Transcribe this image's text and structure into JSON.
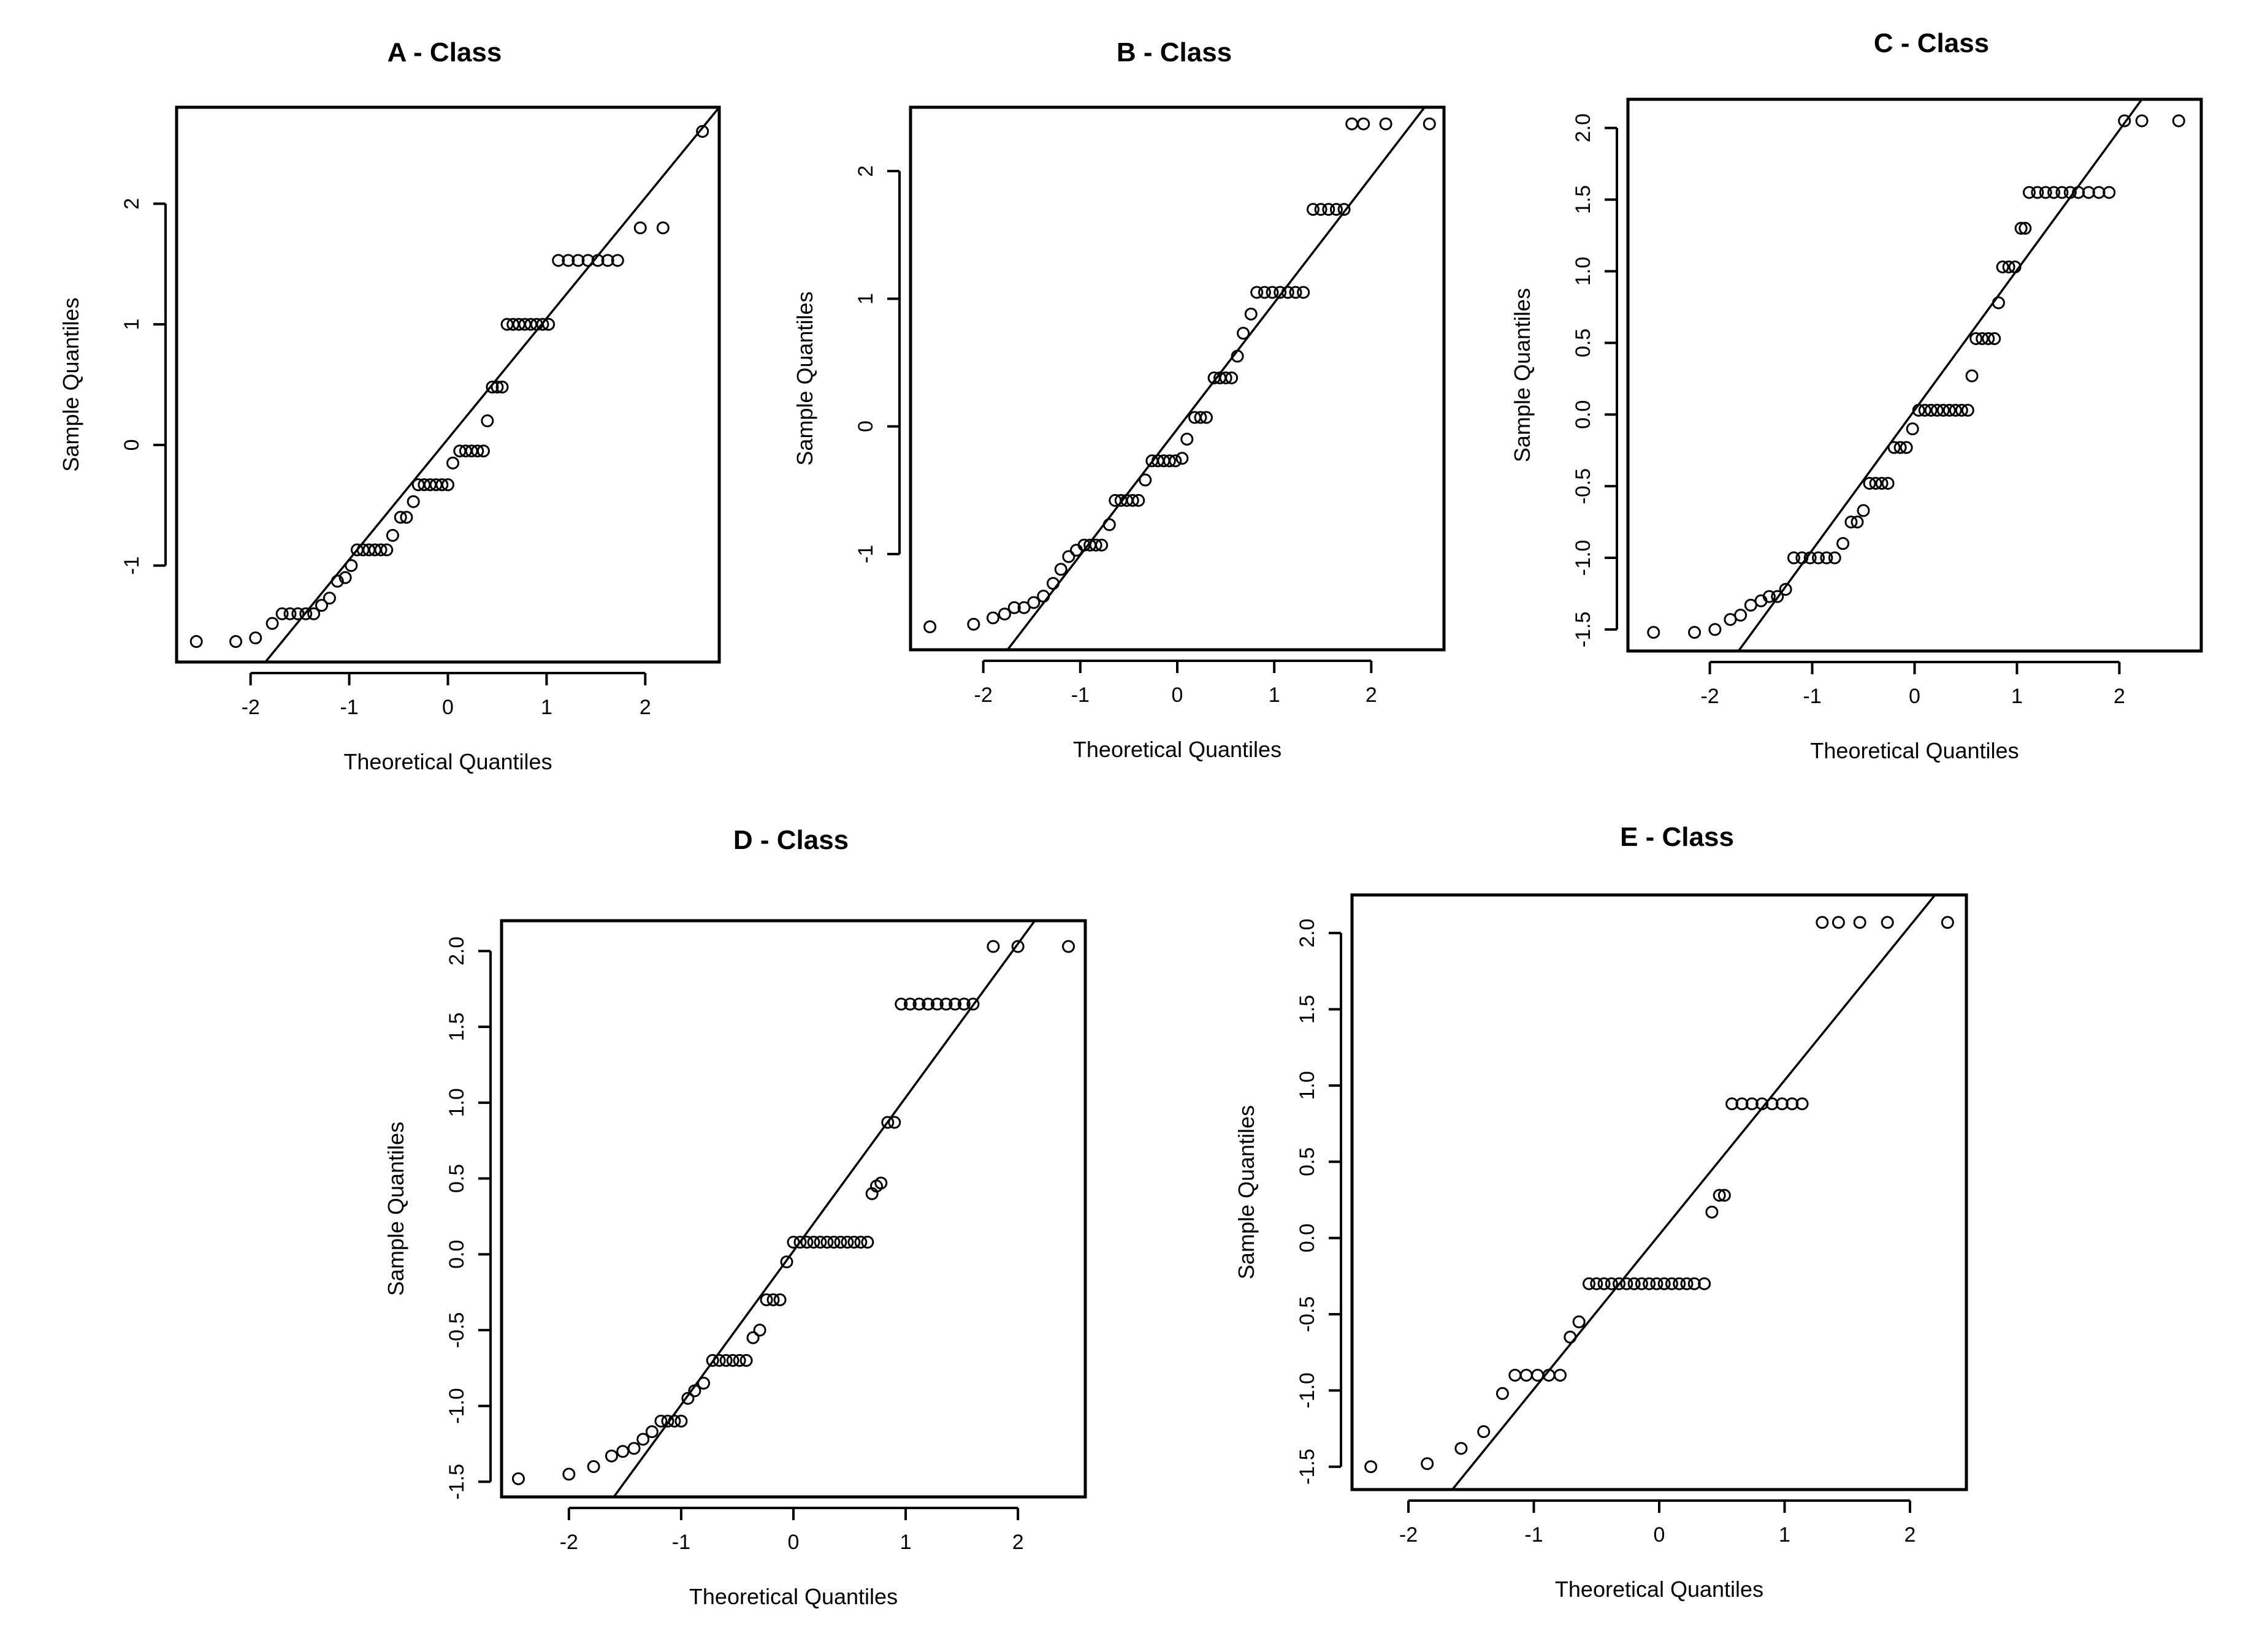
{
  "chart_data": [
    {
      "type": "scatter",
      "title": "A - Class",
      "xlabel": "Theoretical Quantiles",
      "ylabel": "Sample Quantiles",
      "xlim": [
        -2.75,
        2.75
      ],
      "ylim": [
        -1.8,
        2.8
      ],
      "xticks": [
        -2,
        -1,
        0,
        1,
        2
      ],
      "xtick_labels": [
        "-2",
        "-1",
        "0",
        "1",
        "2"
      ],
      "yticks": [
        -1,
        0,
        1,
        2
      ],
      "ytick_labels": [
        "-1",
        "0",
        "1",
        "2"
      ],
      "reference_line": [
        [
          -1.85,
          -1.8
        ],
        [
          2.75,
          2.8
        ]
      ],
      "points": [
        [
          -2.55,
          -1.63
        ],
        [
          -2.15,
          -1.63
        ],
        [
          -1.95,
          -1.6
        ],
        [
          -1.78,
          -1.48
        ],
        [
          -1.68,
          -1.4
        ],
        [
          -1.6,
          -1.4
        ],
        [
          -1.52,
          -1.4
        ],
        [
          -1.44,
          -1.4
        ],
        [
          -1.36,
          -1.4
        ],
        [
          -1.28,
          -1.33
        ],
        [
          -1.2,
          -1.27
        ],
        [
          -1.12,
          -1.13
        ],
        [
          -1.04,
          -1.1
        ],
        [
          -0.98,
          -1.0
        ],
        [
          -0.92,
          -0.87
        ],
        [
          -0.86,
          -0.87
        ],
        [
          -0.8,
          -0.87
        ],
        [
          -0.74,
          -0.87
        ],
        [
          -0.68,
          -0.87
        ],
        [
          -0.62,
          -0.87
        ],
        [
          -0.56,
          -0.75
        ],
        [
          -0.48,
          -0.6
        ],
        [
          -0.42,
          -0.6
        ],
        [
          -0.35,
          -0.47
        ],
        [
          -0.3,
          -0.33
        ],
        [
          -0.24,
          -0.33
        ],
        [
          -0.18,
          -0.33
        ],
        [
          -0.12,
          -0.33
        ],
        [
          -0.06,
          -0.33
        ],
        [
          0.0,
          -0.33
        ],
        [
          0.05,
          -0.15
        ],
        [
          0.12,
          -0.05
        ],
        [
          0.18,
          -0.05
        ],
        [
          0.24,
          -0.05
        ],
        [
          0.3,
          -0.05
        ],
        [
          0.36,
          -0.05
        ],
        [
          0.4,
          0.2
        ],
        [
          0.45,
          0.48
        ],
        [
          0.5,
          0.48
        ],
        [
          0.55,
          0.48
        ],
        [
          0.6,
          1.0
        ],
        [
          0.66,
          1.0
        ],
        [
          0.72,
          1.0
        ],
        [
          0.78,
          1.0
        ],
        [
          0.84,
          1.0
        ],
        [
          0.9,
          1.0
        ],
        [
          0.96,
          1.0
        ],
        [
          1.02,
          1.0
        ],
        [
          1.12,
          1.53
        ],
        [
          1.22,
          1.53
        ],
        [
          1.32,
          1.53
        ],
        [
          1.42,
          1.53
        ],
        [
          1.52,
          1.53
        ],
        [
          1.62,
          1.53
        ],
        [
          1.72,
          1.53
        ],
        [
          1.95,
          1.8
        ],
        [
          2.18,
          1.8
        ],
        [
          2.58,
          2.6
        ]
      ]
    },
    {
      "type": "scatter",
      "title": "B - Class",
      "xlabel": "Theoretical Quantiles",
      "ylabel": "Sample Quantiles",
      "xlim": [
        -2.75,
        2.75
      ],
      "ylim": [
        -1.75,
        2.5
      ],
      "xticks": [
        -2,
        -1,
        0,
        1,
        2
      ],
      "xtick_labels": [
        "-2",
        "-1",
        "0",
        "1",
        "2"
      ],
      "yticks": [
        -1,
        0,
        1,
        2
      ],
      "ytick_labels": [
        "-1",
        "0",
        "1",
        "2"
      ],
      "reference_line": [
        [
          -1.75,
          -1.75
        ],
        [
          2.55,
          2.5
        ]
      ],
      "points": [
        [
          -2.55,
          -1.57
        ],
        [
          -2.1,
          -1.55
        ],
        [
          -1.9,
          -1.5
        ],
        [
          -1.78,
          -1.47
        ],
        [
          -1.68,
          -1.42
        ],
        [
          -1.58,
          -1.42
        ],
        [
          -1.48,
          -1.38
        ],
        [
          -1.38,
          -1.33
        ],
        [
          -1.28,
          -1.23
        ],
        [
          -1.2,
          -1.12
        ],
        [
          -1.12,
          -1.02
        ],
        [
          -1.04,
          -0.97
        ],
        [
          -0.96,
          -0.93
        ],
        [
          -0.9,
          -0.93
        ],
        [
          -0.84,
          -0.93
        ],
        [
          -0.78,
          -0.93
        ],
        [
          -0.7,
          -0.77
        ],
        [
          -0.64,
          -0.58
        ],
        [
          -0.58,
          -0.58
        ],
        [
          -0.52,
          -0.58
        ],
        [
          -0.46,
          -0.58
        ],
        [
          -0.4,
          -0.58
        ],
        [
          -0.33,
          -0.42
        ],
        [
          -0.26,
          -0.27
        ],
        [
          -0.2,
          -0.27
        ],
        [
          -0.14,
          -0.27
        ],
        [
          -0.08,
          -0.27
        ],
        [
          -0.02,
          -0.27
        ],
        [
          0.05,
          -0.25
        ],
        [
          0.1,
          -0.1
        ],
        [
          0.18,
          0.07
        ],
        [
          0.24,
          0.07
        ],
        [
          0.3,
          0.07
        ],
        [
          0.38,
          0.38
        ],
        [
          0.44,
          0.38
        ],
        [
          0.5,
          0.38
        ],
        [
          0.56,
          0.38
        ],
        [
          0.62,
          0.55
        ],
        [
          0.68,
          0.73
        ],
        [
          0.76,
          0.88
        ],
        [
          0.82,
          1.05
        ],
        [
          0.9,
          1.05
        ],
        [
          0.98,
          1.05
        ],
        [
          1.06,
          1.05
        ],
        [
          1.14,
          1.05
        ],
        [
          1.22,
          1.05
        ],
        [
          1.3,
          1.05
        ],
        [
          1.4,
          1.7
        ],
        [
          1.48,
          1.7
        ],
        [
          1.56,
          1.7
        ],
        [
          1.64,
          1.7
        ],
        [
          1.72,
          1.7
        ],
        [
          1.8,
          2.37
        ],
        [
          1.92,
          2.37
        ],
        [
          2.15,
          2.37
        ],
        [
          2.6,
          2.37
        ]
      ]
    },
    {
      "type": "scatter",
      "title": "C - Class",
      "xlabel": "Theoretical Quantiles",
      "ylabel": "Sample Quantiles",
      "xlim": [
        -2.8,
        2.8
      ],
      "ylim": [
        -1.65,
        2.2
      ],
      "xticks": [
        -2,
        -1,
        0,
        1,
        2
      ],
      "xtick_labels": [
        "-2",
        "-1",
        "0",
        "1",
        "2"
      ],
      "yticks": [
        -1.5,
        -1.0,
        -0.5,
        0.0,
        0.5,
        1.0,
        1.5,
        2.0
      ],
      "ytick_labels": [
        "-1.5",
        "-1.0",
        "-0.5",
        "0.0",
        "0.5",
        "1.0",
        "1.5",
        "2.0"
      ],
      "reference_line": [
        [
          -1.72,
          -1.65
        ],
        [
          2.22,
          2.2
        ]
      ],
      "points": [
        [
          -2.55,
          -1.52
        ],
        [
          -2.15,
          -1.52
        ],
        [
          -1.95,
          -1.5
        ],
        [
          -1.8,
          -1.43
        ],
        [
          -1.7,
          -1.4
        ],
        [
          -1.6,
          -1.33
        ],
        [
          -1.5,
          -1.3
        ],
        [
          -1.42,
          -1.27
        ],
        [
          -1.34,
          -1.27
        ],
        [
          -1.26,
          -1.22
        ],
        [
          -1.18,
          -1.0
        ],
        [
          -1.1,
          -1.0
        ],
        [
          -1.02,
          -1.0
        ],
        [
          -0.94,
          -1.0
        ],
        [
          -0.86,
          -1.0
        ],
        [
          -0.78,
          -1.0
        ],
        [
          -0.7,
          -0.9
        ],
        [
          -0.62,
          -0.75
        ],
        [
          -0.56,
          -0.75
        ],
        [
          -0.5,
          -0.67
        ],
        [
          -0.44,
          -0.48
        ],
        [
          -0.38,
          -0.48
        ],
        [
          -0.32,
          -0.48
        ],
        [
          -0.26,
          -0.48
        ],
        [
          -0.2,
          -0.23
        ],
        [
          -0.14,
          -0.23
        ],
        [
          -0.08,
          -0.23
        ],
        [
          -0.02,
          -0.1
        ],
        [
          0.04,
          0.03
        ],
        [
          0.1,
          0.03
        ],
        [
          0.16,
          0.03
        ],
        [
          0.22,
          0.03
        ],
        [
          0.28,
          0.03
        ],
        [
          0.34,
          0.03
        ],
        [
          0.4,
          0.03
        ],
        [
          0.46,
          0.03
        ],
        [
          0.52,
          0.03
        ],
        [
          0.56,
          0.27
        ],
        [
          0.6,
          0.53
        ],
        [
          0.66,
          0.53
        ],
        [
          0.72,
          0.53
        ],
        [
          0.78,
          0.53
        ],
        [
          0.82,
          0.78
        ],
        [
          0.86,
          1.03
        ],
        [
          0.92,
          1.03
        ],
        [
          0.98,
          1.03
        ],
        [
          1.04,
          1.3
        ],
        [
          1.08,
          1.3
        ],
        [
          1.12,
          1.55
        ],
        [
          1.2,
          1.55
        ],
        [
          1.28,
          1.55
        ],
        [
          1.36,
          1.55
        ],
        [
          1.44,
          1.55
        ],
        [
          1.52,
          1.55
        ],
        [
          1.6,
          1.55
        ],
        [
          1.7,
          1.55
        ],
        [
          1.8,
          1.55
        ],
        [
          1.9,
          1.55
        ],
        [
          2.05,
          2.05
        ],
        [
          2.22,
          2.05
        ],
        [
          2.58,
          2.05
        ]
      ]
    },
    {
      "type": "scatter",
      "title": "D - Class",
      "xlabel": "Theoretical Quantiles",
      "ylabel": "Sample Quantiles",
      "xlim": [
        -2.6,
        2.6
      ],
      "ylim": [
        -1.6,
        2.2
      ],
      "xticks": [
        -2,
        -1,
        0,
        1,
        2
      ],
      "xtick_labels": [
        "-2",
        "-1",
        "0",
        "1",
        "2"
      ],
      "yticks": [
        -1.5,
        -1.0,
        -0.5,
        0.0,
        0.5,
        1.0,
        1.5,
        2.0
      ],
      "ytick_labels": [
        "-1.5",
        "-1.0",
        "-0.5",
        "0.0",
        "0.5",
        "1.0",
        "1.5",
        "2.0"
      ],
      "reference_line": [
        [
          -1.6,
          -1.6
        ],
        [
          2.15,
          2.2
        ]
      ],
      "points": [
        [
          -2.45,
          -1.48
        ],
        [
          -2.0,
          -1.45
        ],
        [
          -1.78,
          -1.4
        ],
        [
          -1.62,
          -1.33
        ],
        [
          -1.52,
          -1.3
        ],
        [
          -1.42,
          -1.28
        ],
        [
          -1.34,
          -1.22
        ],
        [
          -1.26,
          -1.17
        ],
        [
          -1.18,
          -1.1
        ],
        [
          -1.12,
          -1.1
        ],
        [
          -1.06,
          -1.1
        ],
        [
          -1.0,
          -1.1
        ],
        [
          -0.94,
          -0.95
        ],
        [
          -0.88,
          -0.9
        ],
        [
          -0.8,
          -0.85
        ],
        [
          -0.72,
          -0.7
        ],
        [
          -0.66,
          -0.7
        ],
        [
          -0.6,
          -0.7
        ],
        [
          -0.54,
          -0.7
        ],
        [
          -0.48,
          -0.7
        ],
        [
          -0.42,
          -0.7
        ],
        [
          -0.36,
          -0.55
        ],
        [
          -0.3,
          -0.5
        ],
        [
          -0.24,
          -0.3
        ],
        [
          -0.18,
          -0.3
        ],
        [
          -0.12,
          -0.3
        ],
        [
          -0.06,
          -0.05
        ],
        [
          0.0,
          0.08
        ],
        [
          0.06,
          0.08
        ],
        [
          0.12,
          0.08
        ],
        [
          0.18,
          0.08
        ],
        [
          0.24,
          0.08
        ],
        [
          0.3,
          0.08
        ],
        [
          0.36,
          0.08
        ],
        [
          0.42,
          0.08
        ],
        [
          0.48,
          0.08
        ],
        [
          0.54,
          0.08
        ],
        [
          0.6,
          0.08
        ],
        [
          0.66,
          0.08
        ],
        [
          0.7,
          0.4
        ],
        [
          0.74,
          0.45
        ],
        [
          0.78,
          0.47
        ],
        [
          0.84,
          0.87
        ],
        [
          0.9,
          0.87
        ],
        [
          0.96,
          1.65
        ],
        [
          1.04,
          1.65
        ],
        [
          1.12,
          1.65
        ],
        [
          1.2,
          1.65
        ],
        [
          1.28,
          1.65
        ],
        [
          1.36,
          1.65
        ],
        [
          1.44,
          1.65
        ],
        [
          1.52,
          1.65
        ],
        [
          1.6,
          1.65
        ],
        [
          1.78,
          2.03
        ],
        [
          2.0,
          2.03
        ],
        [
          2.45,
          2.03
        ]
      ]
    },
    {
      "type": "scatter",
      "title": "E - Class",
      "xlabel": "Theoretical Quantiles",
      "ylabel": "Sample Quantiles",
      "xlim": [
        -2.45,
        2.45
      ],
      "ylim": [
        -1.65,
        2.25
      ],
      "xticks": [
        -2,
        -1,
        0,
        1,
        2
      ],
      "xtick_labels": [
        "-2",
        "-1",
        "0",
        "1",
        "2"
      ],
      "yticks": [
        -1.5,
        -1.0,
        -0.5,
        0.0,
        0.5,
        1.0,
        1.5,
        2.0
      ],
      "ytick_labels": [
        "-1.5",
        "-1.0",
        "-0.5",
        "0.0",
        "0.5",
        "1.0",
        "1.5",
        "2.0"
      ],
      "reference_line": [
        [
          -1.65,
          -1.65
        ],
        [
          2.2,
          2.25
        ]
      ],
      "points": [
        [
          -2.3,
          -1.5
        ],
        [
          -1.85,
          -1.48
        ],
        [
          -1.58,
          -1.38
        ],
        [
          -1.4,
          -1.27
        ],
        [
          -1.25,
          -1.02
        ],
        [
          -1.15,
          -0.9
        ],
        [
          -1.06,
          -0.9
        ],
        [
          -0.97,
          -0.9
        ],
        [
          -0.88,
          -0.9
        ],
        [
          -0.79,
          -0.9
        ],
        [
          -0.71,
          -0.65
        ],
        [
          -0.64,
          -0.55
        ],
        [
          -0.56,
          -0.3
        ],
        [
          -0.5,
          -0.3
        ],
        [
          -0.44,
          -0.3
        ],
        [
          -0.38,
          -0.3
        ],
        [
          -0.32,
          -0.3
        ],
        [
          -0.26,
          -0.3
        ],
        [
          -0.2,
          -0.3
        ],
        [
          -0.14,
          -0.3
        ],
        [
          -0.08,
          -0.3
        ],
        [
          -0.02,
          -0.3
        ],
        [
          0.04,
          -0.3
        ],
        [
          0.1,
          -0.3
        ],
        [
          0.16,
          -0.3
        ],
        [
          0.22,
          -0.3
        ],
        [
          0.28,
          -0.3
        ],
        [
          0.36,
          -0.3
        ],
        [
          0.42,
          0.17
        ],
        [
          0.48,
          0.28
        ],
        [
          0.52,
          0.28
        ],
        [
          0.58,
          0.88
        ],
        [
          0.66,
          0.88
        ],
        [
          0.74,
          0.88
        ],
        [
          0.82,
          0.88
        ],
        [
          0.9,
          0.88
        ],
        [
          0.98,
          0.88
        ],
        [
          1.06,
          0.88
        ],
        [
          1.14,
          0.88
        ],
        [
          1.3,
          2.07
        ],
        [
          1.43,
          2.07
        ],
        [
          1.6,
          2.07
        ],
        [
          1.82,
          2.07
        ],
        [
          2.3,
          2.07
        ]
      ]
    }
  ]
}
